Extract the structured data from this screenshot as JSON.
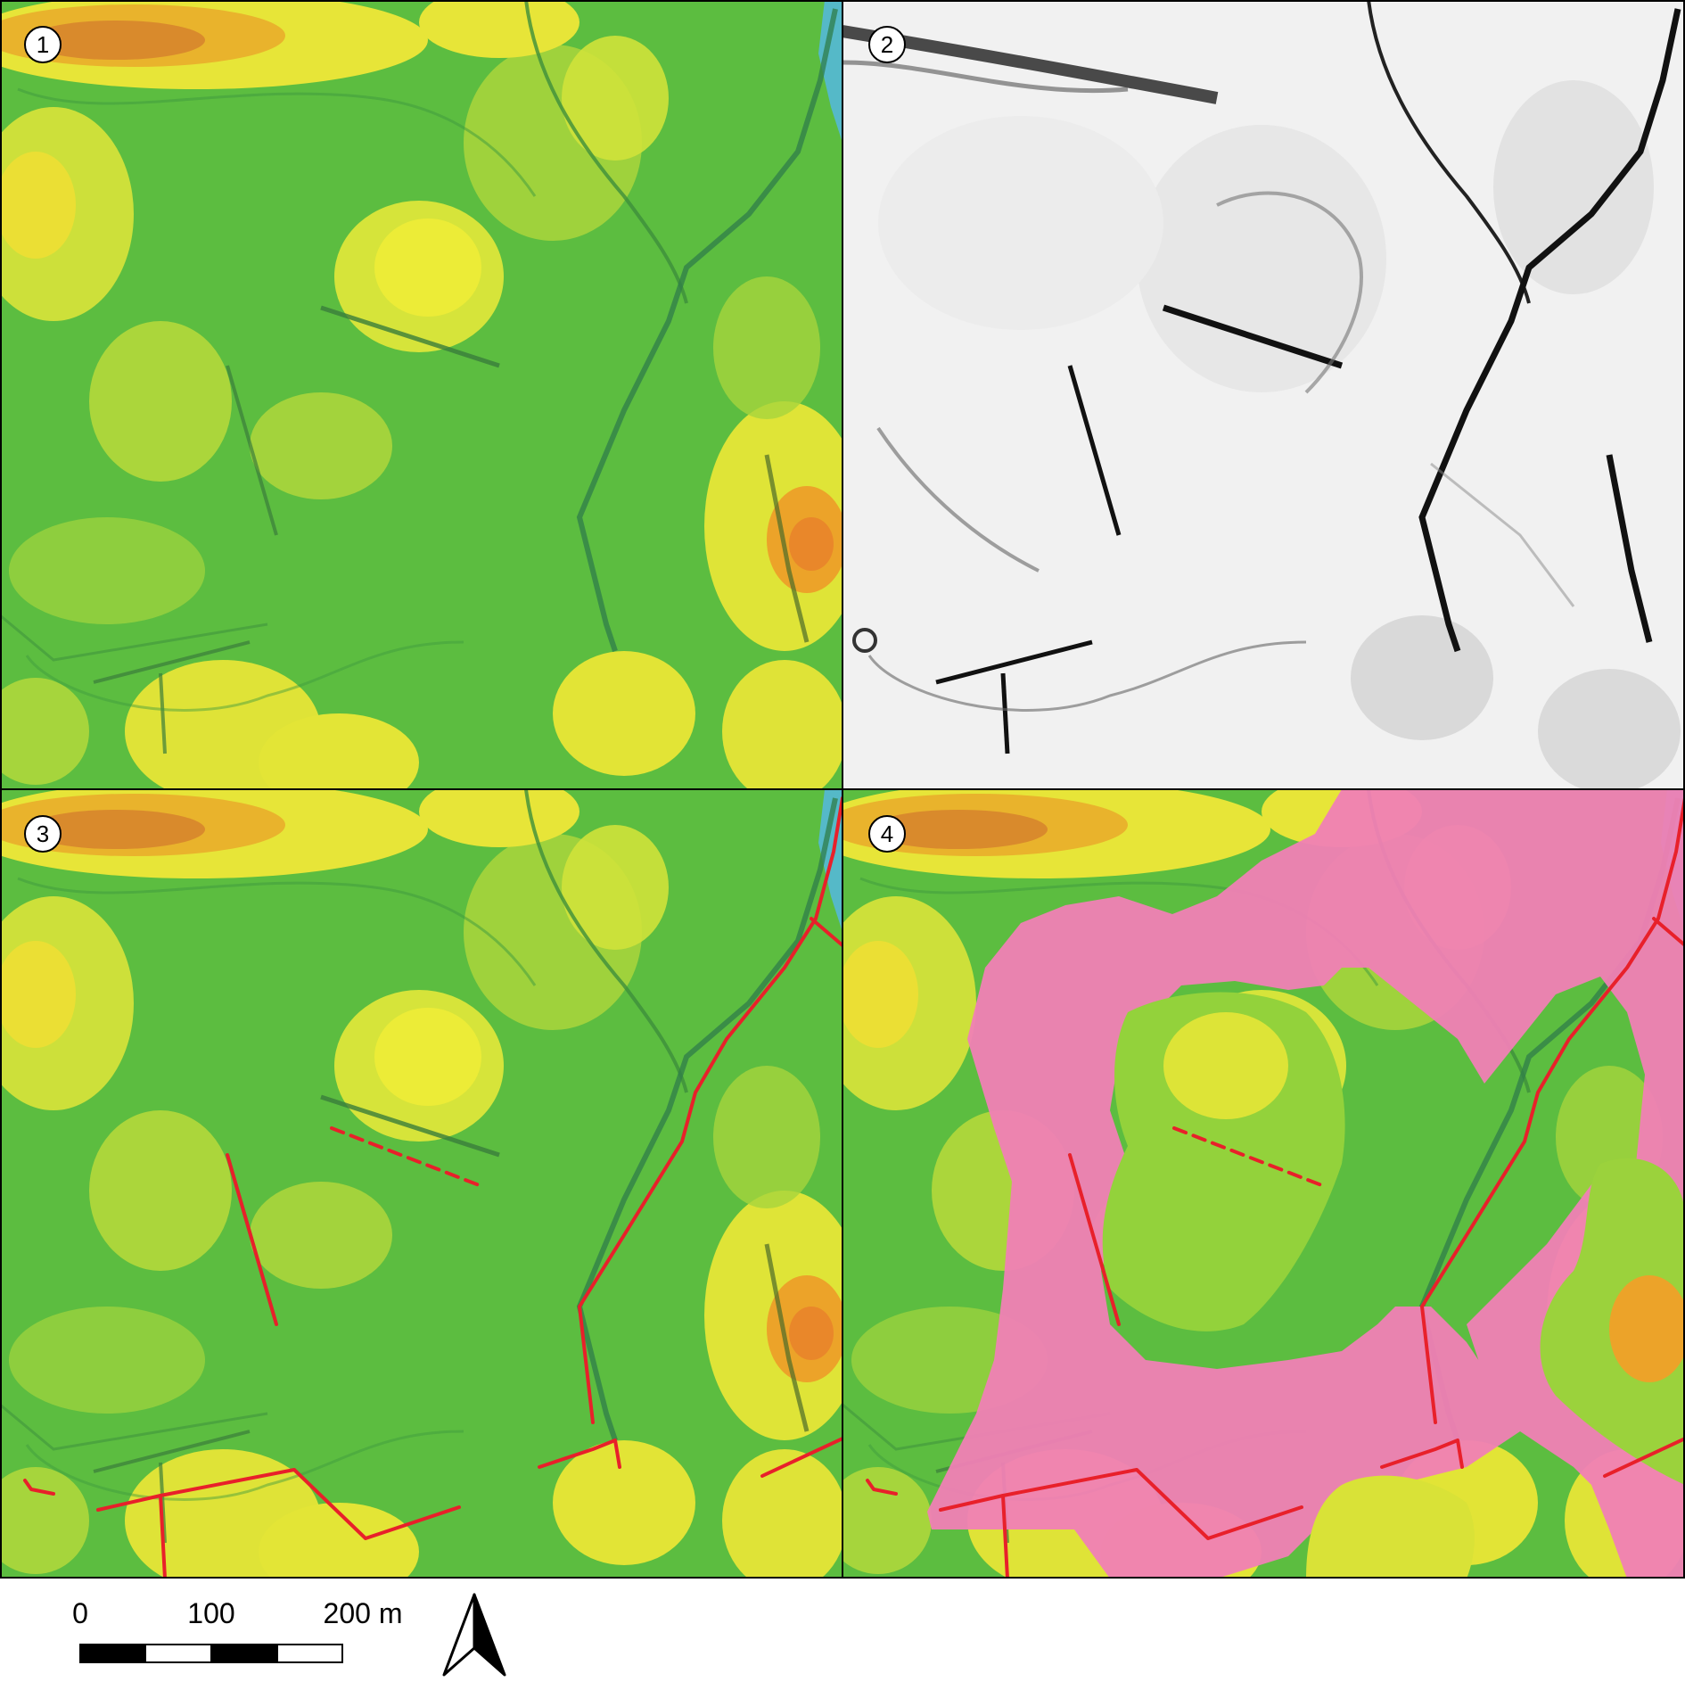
{
  "panels": [
    {
      "label": "1",
      "style": "elevation-color"
    },
    {
      "label": "2",
      "style": "hillshade-grayscale"
    },
    {
      "label": "3",
      "style": "elevation-with-mapped-features"
    },
    {
      "label": "4",
      "style": "elevation-with-flood-extent"
    }
  ],
  "legend": {
    "features_color": "#e8202a",
    "flood_color": "#f07fb5"
  },
  "scale_bar": {
    "labels": [
      "0",
      "100",
      "200 m"
    ],
    "segments": 4
  },
  "north_arrow": {
    "icon": "north-arrow-icon"
  },
  "colors": {
    "low": "#58bb3f",
    "mid": "#8fcf3a",
    "high": "#e8e83a",
    "peak": "#e98a1e",
    "water": "#4fb7d7"
  }
}
